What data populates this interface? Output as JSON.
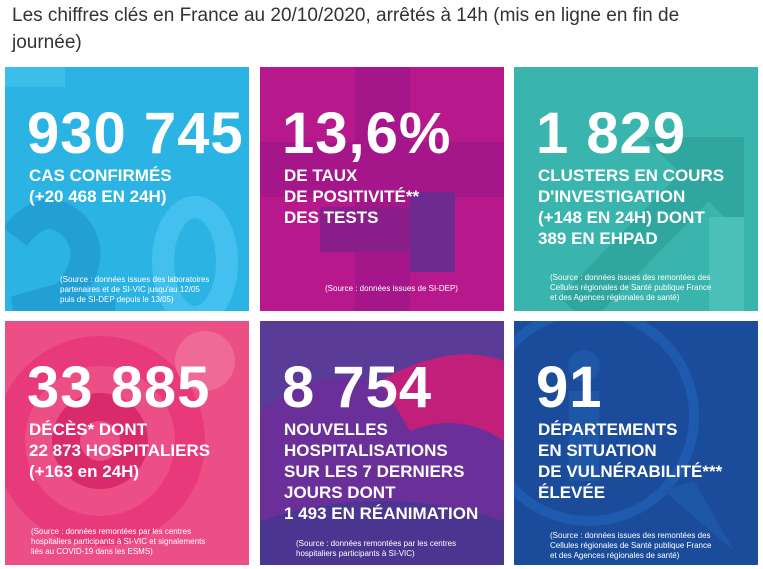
{
  "header": {
    "title": "Les chiffres clés en France au 20/10/2020, arrêtés à 14h (mis en ligne en fin de journée)"
  },
  "tiles": [
    {
      "value": "930 745",
      "lines": [
        "CAS CONFIRMÉS",
        "(+20 468 EN 24H)"
      ],
      "source": [
        "(Source : données issues des laboratoires",
        "partenaires et de SI-VIC jusqu'au 12/05",
        "puis de SI-DEP depuis le 13/05)"
      ],
      "color": "#2bb3e4"
    },
    {
      "value": "13,6%",
      "lines": [
        "DE TAUX",
        "DE POSITIVITÉ**",
        "DES TESTS"
      ],
      "source": [
        "(Source : données issues de SI-DEP)"
      ],
      "color": "#b7198c"
    },
    {
      "value": "1 829",
      "lines": [
        "CLUSTERS EN COURS",
        "D'INVESTIGATION",
        "(+148 EN 24H) DONT",
        "389 EN EHPAD"
      ],
      "source": [
        "(Source : données issues des remontées des",
        "Cellules régionales de Santé publique France",
        "et des Agences régionales de santé)"
      ],
      "color": "#39b5ad"
    },
    {
      "value": "33 885",
      "lines": [
        "DÉCÈS* DONT",
        "22 873 HOSPITALIERS",
        "(+163 en 24H)"
      ],
      "source": [
        "(Source : données remontées par les centres",
        "hospitaliers participants à SI-VIC et signalements",
        "liés au COVID-19 dans les ESMS)"
      ],
      "color": "#ec4e86"
    },
    {
      "value": "8 754",
      "lines": [
        "NOUVELLES",
        "HOSPITALISATIONS",
        "SUR LES 7 DERNIERS",
        "JOURS DONT",
        "1 493 EN RÉANIMATION"
      ],
      "source": [
        "(Source : données remontées par les centres",
        "hospitaliers participants à SI-VIC)"
      ],
      "color": "#5a3c98"
    },
    {
      "value": "91",
      "lines": [
        "DÉPARTEMENTS",
        "EN SITUATION",
        "DE VULNÉRABILITÉ***",
        "ÉLEVÉE"
      ],
      "source": [
        "(Source : données issues des remontées des",
        "Cellules régionales de Santé publique France",
        "et des Agences régionales de santé)"
      ],
      "color": "#1b4c9b"
    }
  ]
}
